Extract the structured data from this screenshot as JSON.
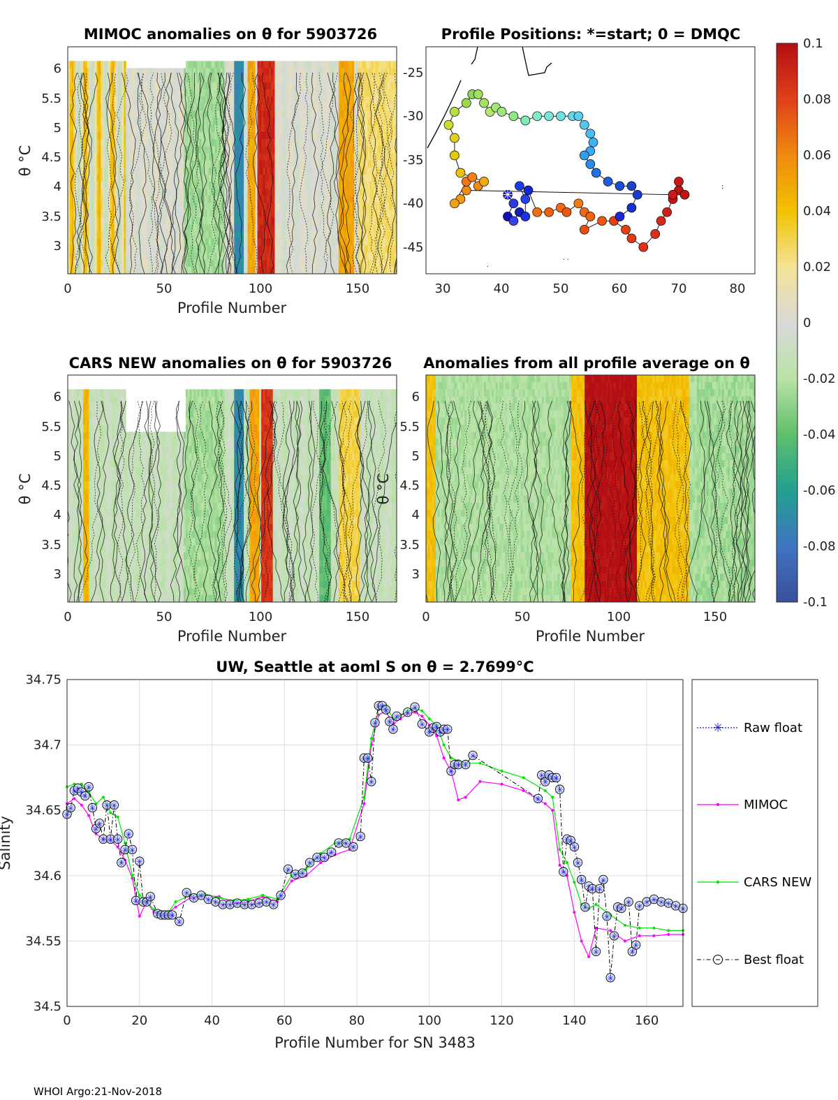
{
  "footer": "WHOI Argo:21-Nov-2018",
  "colors": {
    "raw_float": "#1f1fd6",
    "mimoc": "#ff00ff",
    "cars": "#00e600",
    "best": "#000000"
  },
  "colorbar": {
    "ticks": [
      "0.1",
      "0.08",
      "0.06",
      "0.04",
      "0.02",
      "0",
      "-0.02",
      "-0.04",
      "-0.06",
      "-0.08",
      "-0.1"
    ]
  },
  "panels": {
    "mimoc": {
      "title": "MIMOC anomalies on θ  for 5903726",
      "xlabel": "Profile Number",
      "ylabel": "θ °C",
      "xticks": [
        "0",
        "50",
        "100",
        "150"
      ],
      "yticks": [
        "6",
        "5.5",
        "5",
        "4.5",
        "4",
        "3.5",
        "3"
      ]
    },
    "positions": {
      "title": "Profile Positions: *=start; 0 = DMQC",
      "xticks": [
        "30",
        "40",
        "50",
        "60",
        "70",
        "80"
      ],
      "yticks": [
        "-25",
        "-30",
        "-35",
        "-40",
        "-45"
      ]
    },
    "cars": {
      "title": "CARS NEW anomalies on θ for 5903726",
      "xlabel": "Profile Number",
      "ylabel": "θ °C",
      "xticks": [
        "0",
        "50",
        "100",
        "150"
      ],
      "yticks": [
        "6",
        "5.5",
        "5",
        "4.5",
        "4",
        "3.5",
        "3"
      ]
    },
    "allavg": {
      "title": "Anomalies from all profile average on θ",
      "xlabel": "Profile Number",
      "xticks": [
        "0",
        "50",
        "100",
        "150"
      ],
      "yticks": [
        "6",
        "5.5",
        "5",
        "4.5",
        "4",
        "3.5",
        "3"
      ],
      "yunit": "θ °C"
    }
  },
  "chart_data": [
    {
      "type": "line",
      "title": "UW, Seattle at aoml S on θ = 2.7699°C",
      "xlabel": "Profile Number for SN 3483",
      "ylabel": "Salinity",
      "xlim": [
        0,
        170
      ],
      "ylim": [
        34.5,
        34.75
      ],
      "xticks": [
        "0",
        "20",
        "40",
        "60",
        "80",
        "100",
        "120",
        "140",
        "160"
      ],
      "yticks": [
        "34.75",
        "34.7",
        "34.65",
        "34.6",
        "34.55",
        "34.5"
      ],
      "grid": true,
      "legend_entries": [
        "Raw float",
        "MIMOC",
        "CARS NEW",
        "Best float"
      ],
      "series": [
        {
          "name": "Best float",
          "x": [
            0,
            1,
            2,
            3,
            4,
            5,
            6,
            7,
            8,
            9,
            10,
            11,
            12,
            13,
            14,
            15,
            16,
            17,
            18,
            19,
            20,
            21,
            22,
            23,
            25,
            26,
            27,
            28,
            29,
            31,
            33,
            35,
            37,
            39,
            41,
            43,
            45,
            47,
            49,
            51,
            53,
            55,
            57,
            59,
            61,
            63,
            65,
            67,
            69,
            71,
            73,
            75,
            77,
            79,
            81,
            82,
            83,
            84,
            85,
            86,
            87,
            88,
            89,
            90,
            91,
            94,
            96,
            98,
            100,
            101,
            102,
            103,
            104,
            105,
            106,
            107,
            108,
            110,
            112,
            130,
            131,
            132,
            133,
            134,
            135,
            136,
            137,
            138,
            139,
            140,
            141,
            142,
            143,
            144,
            145,
            146,
            147,
            148,
            149,
            150,
            151,
            152,
            153,
            155,
            156,
            157,
            158,
            160,
            162,
            164,
            166,
            168,
            170
          ],
          "y": [
            34.647,
            34.652,
            34.665,
            34.667,
            34.664,
            34.661,
            34.668,
            34.652,
            34.636,
            34.64,
            34.628,
            34.654,
            34.628,
            34.654,
            34.628,
            34.61,
            34.62,
            34.632,
            34.62,
            34.581,
            34.611,
            34.58,
            34.58,
            34.584,
            34.571,
            34.57,
            34.57,
            34.57,
            34.57,
            34.565,
            34.587,
            34.583,
            34.585,
            34.582,
            34.58,
            34.578,
            34.578,
            34.579,
            34.578,
            34.578,
            34.579,
            34.58,
            34.578,
            34.585,
            34.605,
            34.601,
            34.602,
            34.61,
            34.614,
            34.614,
            34.618,
            34.625,
            34.625,
            34.622,
            34.63,
            34.69,
            34.69,
            34.672,
            34.717,
            34.73,
            34.73,
            34.727,
            34.718,
            34.712,
            34.722,
            34.725,
            34.729,
            34.716,
            34.71,
            34.713,
            34.714,
            34.71,
            34.712,
            34.712,
            34.68,
            34.685,
            34.685,
            34.685,
            34.692,
            34.659,
            34.677,
            34.672,
            34.677,
            34.675,
            34.675,
            34.666,
            34.603,
            34.628,
            34.627,
            34.622,
            34.61,
            34.597,
            34.576,
            34.592,
            34.59,
            34.542,
            34.59,
            34.597,
            34.569,
            34.522,
            34.554,
            34.576,
            34.575,
            34.58,
            34.542,
            34.547,
            34.577,
            34.58,
            34.582,
            34.58,
            34.579,
            34.577,
            34.575
          ]
        },
        {
          "name": "MIMOC",
          "x": [
            0,
            2,
            4,
            6,
            8,
            10,
            12,
            14,
            16,
            18,
            20,
            22,
            24,
            26,
            28,
            30,
            34,
            38,
            42,
            46,
            50,
            54,
            58,
            62,
            66,
            70,
            74,
            78,
            82,
            84,
            86,
            88,
            90,
            92,
            94,
            96,
            98,
            100,
            102,
            104,
            106,
            108,
            110,
            114,
            120,
            126,
            132,
            134,
            136,
            138,
            140,
            142,
            144,
            146,
            150,
            154,
            158,
            162,
            166,
            170
          ],
          "y": [
            34.655,
            34.659,
            34.654,
            34.646,
            34.632,
            34.628,
            34.627,
            34.622,
            34.612,
            34.598,
            34.569,
            34.58,
            34.572,
            34.571,
            34.572,
            34.576,
            34.583,
            34.585,
            34.584,
            34.579,
            34.58,
            34.584,
            34.58,
            34.596,
            34.6,
            34.61,
            34.616,
            34.62,
            34.655,
            34.7,
            34.723,
            34.726,
            34.716,
            34.72,
            34.724,
            34.725,
            34.722,
            34.715,
            34.707,
            34.69,
            34.68,
            34.658,
            34.66,
            34.672,
            34.67,
            34.665,
            34.655,
            34.65,
            34.608,
            34.6,
            34.572,
            34.55,
            34.538,
            34.56,
            34.558,
            34.55,
            34.554,
            34.554,
            34.555,
            34.555
          ]
        },
        {
          "name": "CARS NEW",
          "x": [
            0,
            2,
            4,
            6,
            8,
            10,
            12,
            14,
            16,
            18,
            20,
            22,
            24,
            26,
            28,
            30,
            34,
            38,
            42,
            46,
            50,
            54,
            58,
            62,
            66,
            70,
            74,
            78,
            82,
            84,
            86,
            88,
            90,
            92,
            94,
            96,
            98,
            100,
            102,
            104,
            106,
            108,
            110,
            114,
            120,
            126,
            132,
            134,
            136,
            138,
            140,
            142,
            144,
            146,
            150,
            154,
            158,
            162,
            166,
            170
          ],
          "y": [
            34.668,
            34.67,
            34.67,
            34.664,
            34.655,
            34.66,
            34.648,
            34.645,
            34.625,
            34.6,
            34.585,
            34.58,
            34.574,
            34.571,
            34.572,
            34.58,
            34.585,
            34.586,
            34.583,
            34.581,
            34.582,
            34.585,
            34.582,
            34.6,
            34.605,
            34.617,
            34.625,
            34.628,
            34.66,
            34.705,
            34.727,
            34.73,
            34.72,
            34.722,
            34.726,
            34.728,
            34.726,
            34.72,
            34.715,
            34.7,
            34.69,
            34.688,
            34.686,
            34.686,
            34.68,
            34.675,
            34.665,
            34.66,
            34.62,
            34.61,
            34.595,
            34.578,
            34.575,
            34.578,
            34.57,
            34.562,
            34.56,
            34.56,
            34.558,
            34.558
          ]
        }
      ]
    }
  ]
}
